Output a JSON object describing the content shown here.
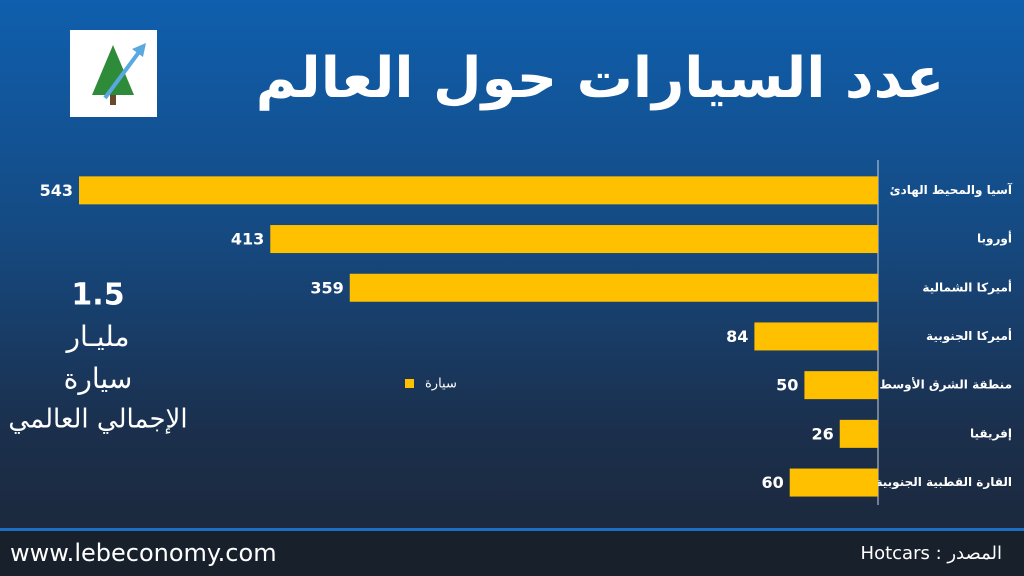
{
  "chart_data": {
    "type": "bar",
    "orientation": "horizontal",
    "title": "عدد السيارات حول العالم",
    "categories": [
      "آسيا والمحيط الهادئ",
      "أوروبا",
      "أميركا الشمالية",
      "أميركا الجنوبية",
      "منطقة الشرق الأوسط",
      "إفريقيا",
      "القارة القطبية الجنوبية"
    ],
    "series": [
      {
        "name": "سيارة",
        "color": "#ffc000",
        "values": [
          543,
          413,
          359,
          84,
          50,
          26,
          60
        ]
      }
    ],
    "legend": "center",
    "total_value": 1.5,
    "total_labels": [
      "مليـار",
      "سيارة",
      "الإجمالي العالمي"
    ]
  },
  "footer": {
    "website": "www.lebeconomy.com",
    "source": "المصدر : Hotcars"
  }
}
